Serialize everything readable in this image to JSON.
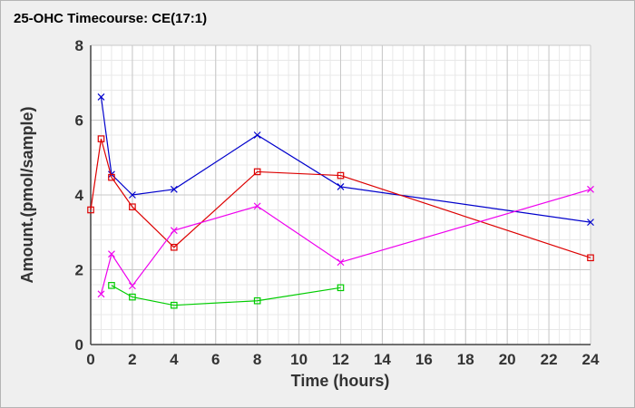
{
  "chart_data": {
    "type": "line",
    "title": "25-OHC Timecourse: CE(17:1)",
    "xlabel": "Time (hours)",
    "ylabel": "Amount.(pmol/sample)",
    "xlim": [
      0,
      24
    ],
    "ylim": [
      0,
      8
    ],
    "x_ticks": [
      0,
      2,
      4,
      6,
      8,
      10,
      12,
      14,
      16,
      18,
      20,
      22,
      24
    ],
    "y_ticks": [
      0,
      2,
      4,
      6,
      8
    ],
    "x_tick_labels": [
      "0",
      "2",
      "4",
      "6",
      "8",
      "10",
      "12",
      "14",
      "16",
      "18",
      "20",
      "22",
      "24"
    ],
    "y_tick_labels": [
      "0",
      "2",
      "4",
      "6",
      "8"
    ],
    "grid": true,
    "legend": "none",
    "series": [
      {
        "color": "#0000cc",
        "marker": "x",
        "points": [
          [
            0.5,
            6.62
          ],
          [
            1,
            4.55
          ],
          [
            2,
            4.0
          ],
          [
            4,
            4.15
          ],
          [
            8,
            5.6
          ],
          [
            12,
            4.22
          ],
          [
            24,
            3.27
          ]
        ]
      },
      {
        "color": "#dd0000",
        "marker": "square",
        "points": [
          [
            0,
            3.6
          ],
          [
            0.5,
            5.5
          ],
          [
            1,
            4.47
          ],
          [
            2,
            3.68
          ],
          [
            4,
            2.6
          ],
          [
            8,
            4.62
          ],
          [
            12,
            4.52
          ],
          [
            24,
            2.32
          ]
        ]
      },
      {
        "color": "#ee00ee",
        "marker": "x",
        "points": [
          [
            0.5,
            1.35
          ],
          [
            1,
            2.42
          ],
          [
            2,
            1.57
          ],
          [
            4,
            3.05
          ],
          [
            8,
            3.7
          ],
          [
            12,
            2.2
          ],
          [
            24,
            4.15
          ]
        ]
      },
      {
        "color": "#00cc00",
        "marker": "square",
        "points": [
          [
            1,
            1.58
          ],
          [
            2,
            1.27
          ],
          [
            4,
            1.05
          ],
          [
            8,
            1.17
          ],
          [
            12,
            1.52
          ]
        ]
      }
    ]
  }
}
